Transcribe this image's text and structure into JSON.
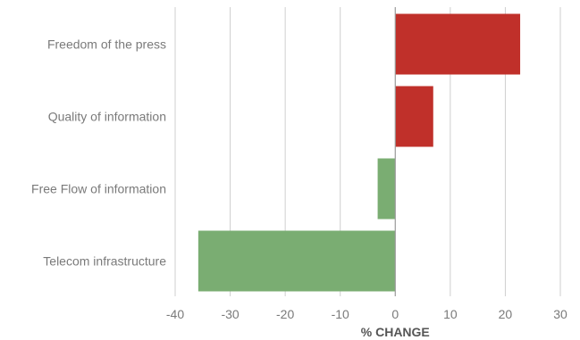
{
  "chart_data": {
    "type": "bar",
    "orientation": "horizontal",
    "categories": [
      "Freedom of the press",
      "Quality of information",
      "Free Flow of information",
      "Telecom infrastructure"
    ],
    "values": [
      22.7,
      6.9,
      -3.2,
      -35.8
    ],
    "xlabel": "% CHANGE",
    "xlim": [
      -40,
      30
    ],
    "xticks": [
      -40,
      -30,
      -20,
      -10,
      0,
      10,
      20,
      30
    ],
    "xtick_labels": [
      "-40",
      "-30",
      "-20",
      "-10",
      "0",
      "10",
      "20",
      "30"
    ],
    "grid": "vertical",
    "legend": "none",
    "colors": {
      "positive": "#c0302a",
      "negative": "#7aad72"
    }
  }
}
